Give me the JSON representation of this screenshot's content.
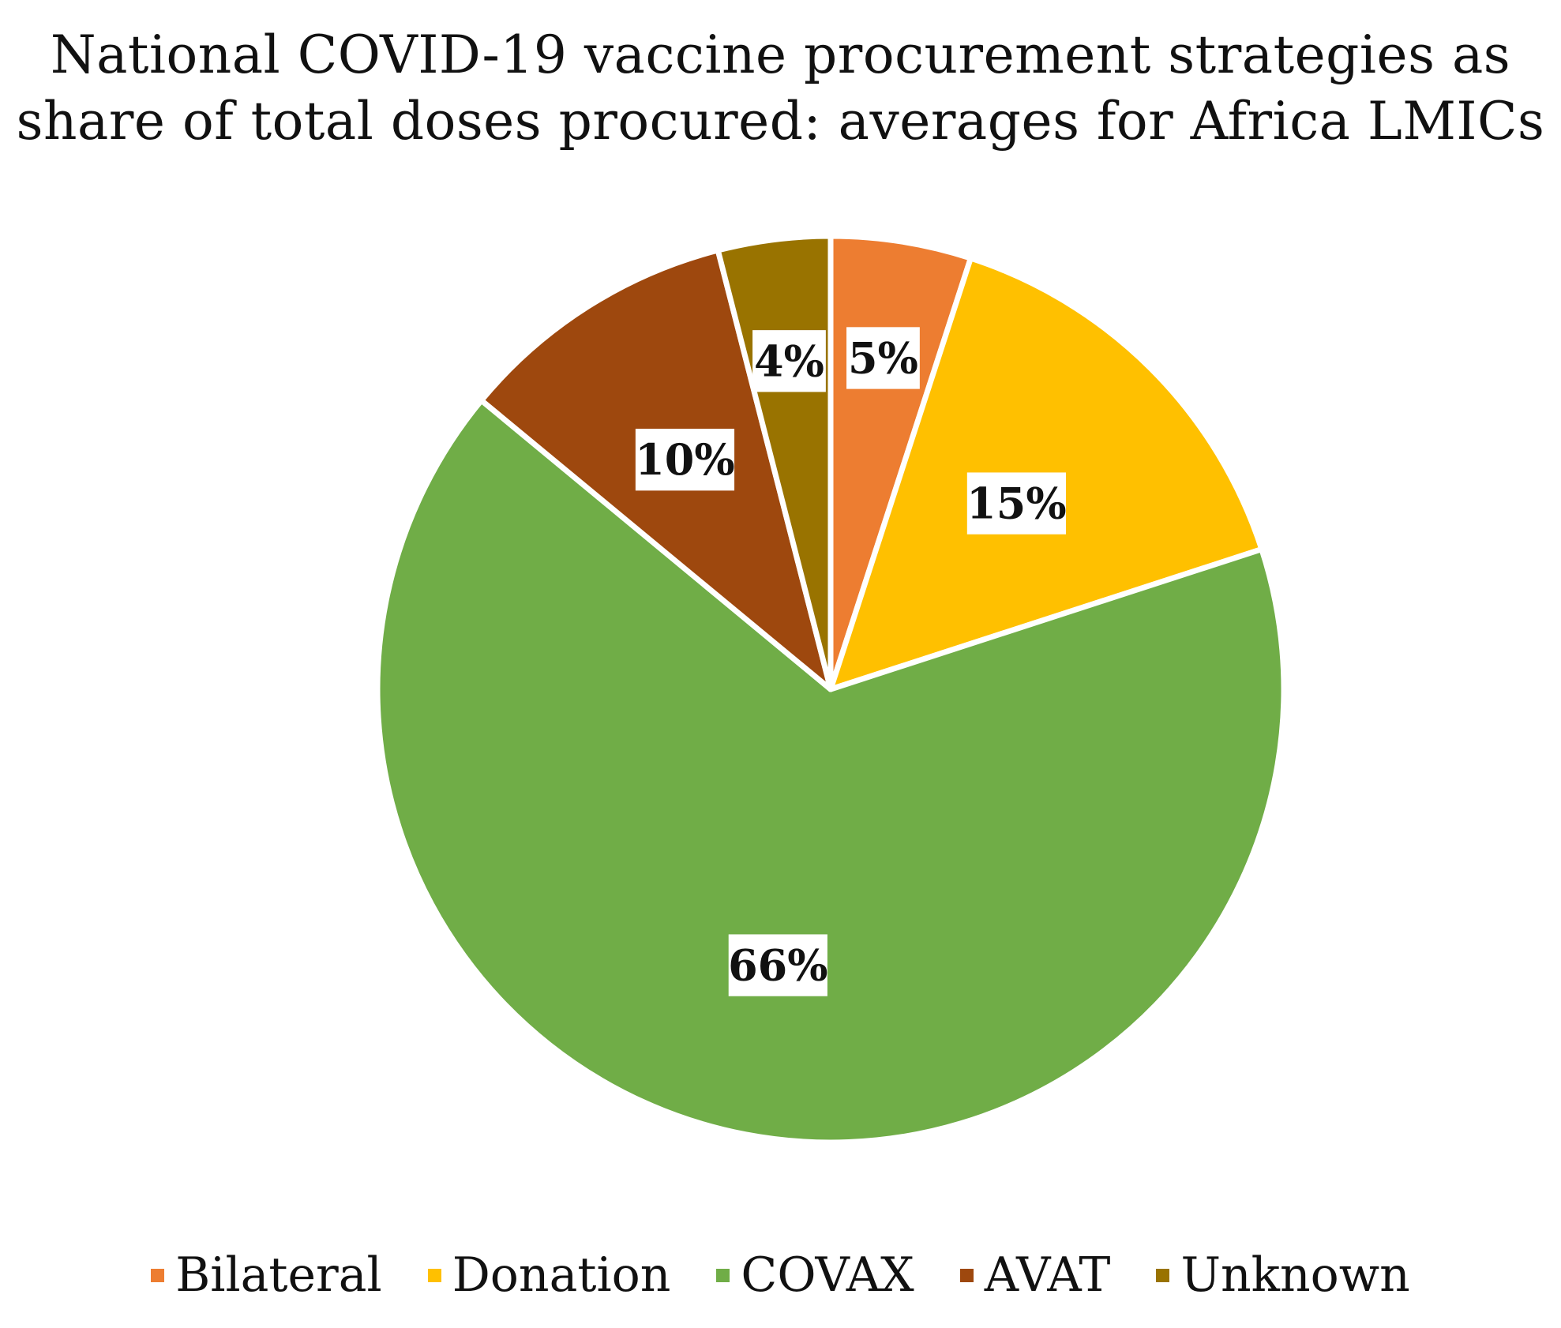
{
  "chart_data": {
    "type": "pie",
    "title": [
      "National COVID-19 vaccine procurement strategies as",
      "share of total doses procured: averages for Africa LMICs"
    ],
    "start_angle_deg": 0,
    "direction": "clockwise",
    "legend_position": "bottom",
    "slices": [
      {
        "label": "Bilateral",
        "value": 5,
        "display": "5%",
        "color": "#ED7D31"
      },
      {
        "label": "Donation",
        "value": 15,
        "display": "15%",
        "color": "#FFC000"
      },
      {
        "label": "COVAX",
        "value": 66,
        "display": "66%",
        "color": "#70AD47"
      },
      {
        "label": "AVAT",
        "value": 10,
        "display": "10%",
        "color": "#9E480E"
      },
      {
        "label": "Unknown",
        "value": 4,
        "display": "4%",
        "color": "#997300"
      }
    ]
  }
}
